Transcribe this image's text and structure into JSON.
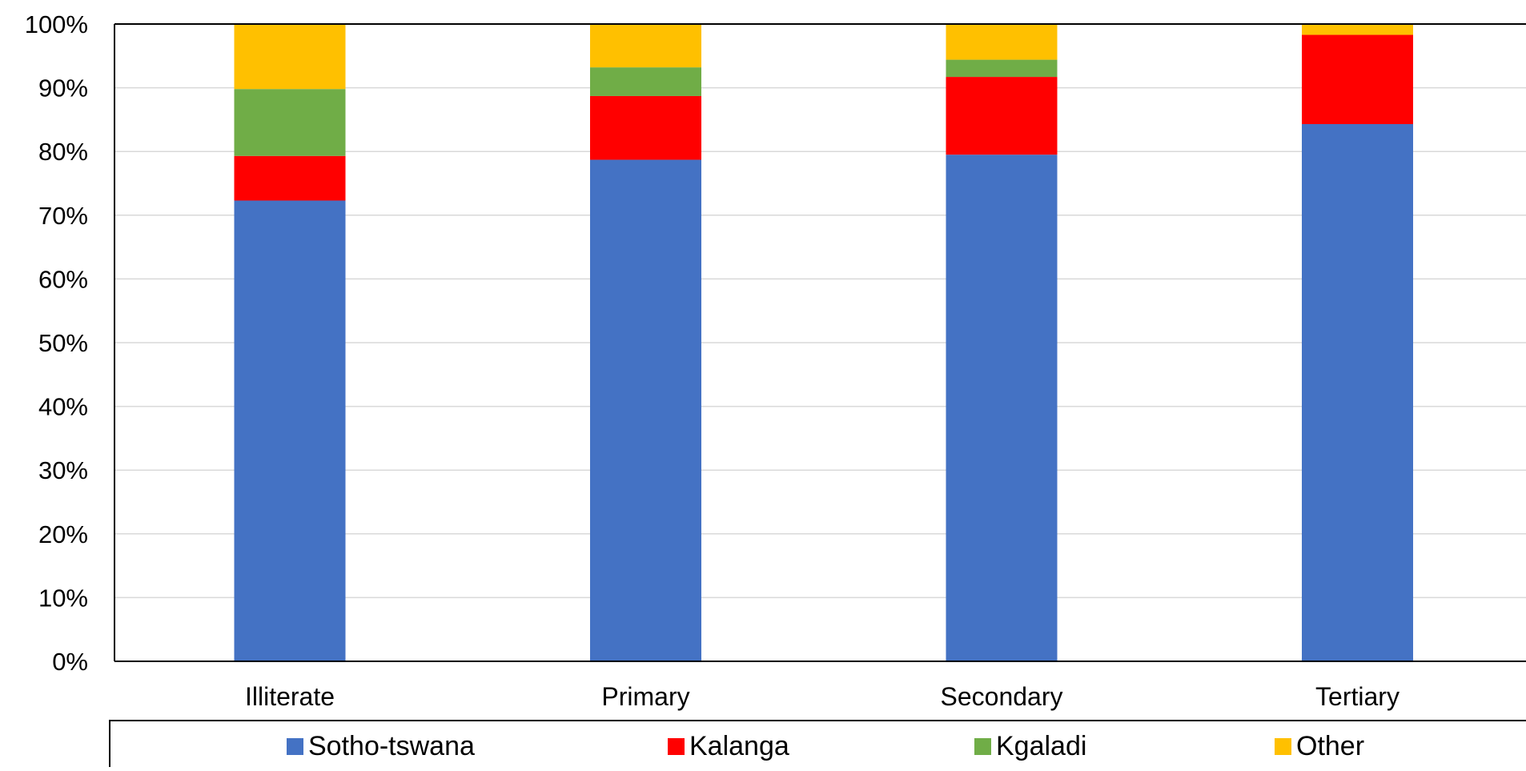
{
  "chart_data": {
    "type": "bar",
    "stacked": true,
    "title": "",
    "xlabel": "",
    "ylabel": "",
    "categories": [
      "Illiterate",
      "Primary",
      "Secondary",
      "Tertiary"
    ],
    "series": [
      {
        "name": "Sotho-tswana",
        "color": "#4472C4",
        "values": [
          72.3,
          78.7,
          79.5,
          84.3
        ]
      },
      {
        "name": "Kalanga",
        "color": "#FF0000",
        "values": [
          7.0,
          10.0,
          12.2,
          14.0
        ]
      },
      {
        "name": "Kgaladi",
        "color": "#70AD47",
        "values": [
          10.5,
          4.5,
          2.7,
          0.0
        ]
      },
      {
        "name": "Other",
        "color": "#FFC000",
        "values": [
          10.2,
          6.8,
          5.6,
          1.7
        ]
      }
    ],
    "yaxis": {
      "min": 0,
      "max": 100,
      "ticks": [
        "0%",
        "10%",
        "20%",
        "30%",
        "40%",
        "50%",
        "60%",
        "70%",
        "80%",
        "90%",
        "100%"
      ]
    },
    "grid": true,
    "legend": "bottom"
  }
}
